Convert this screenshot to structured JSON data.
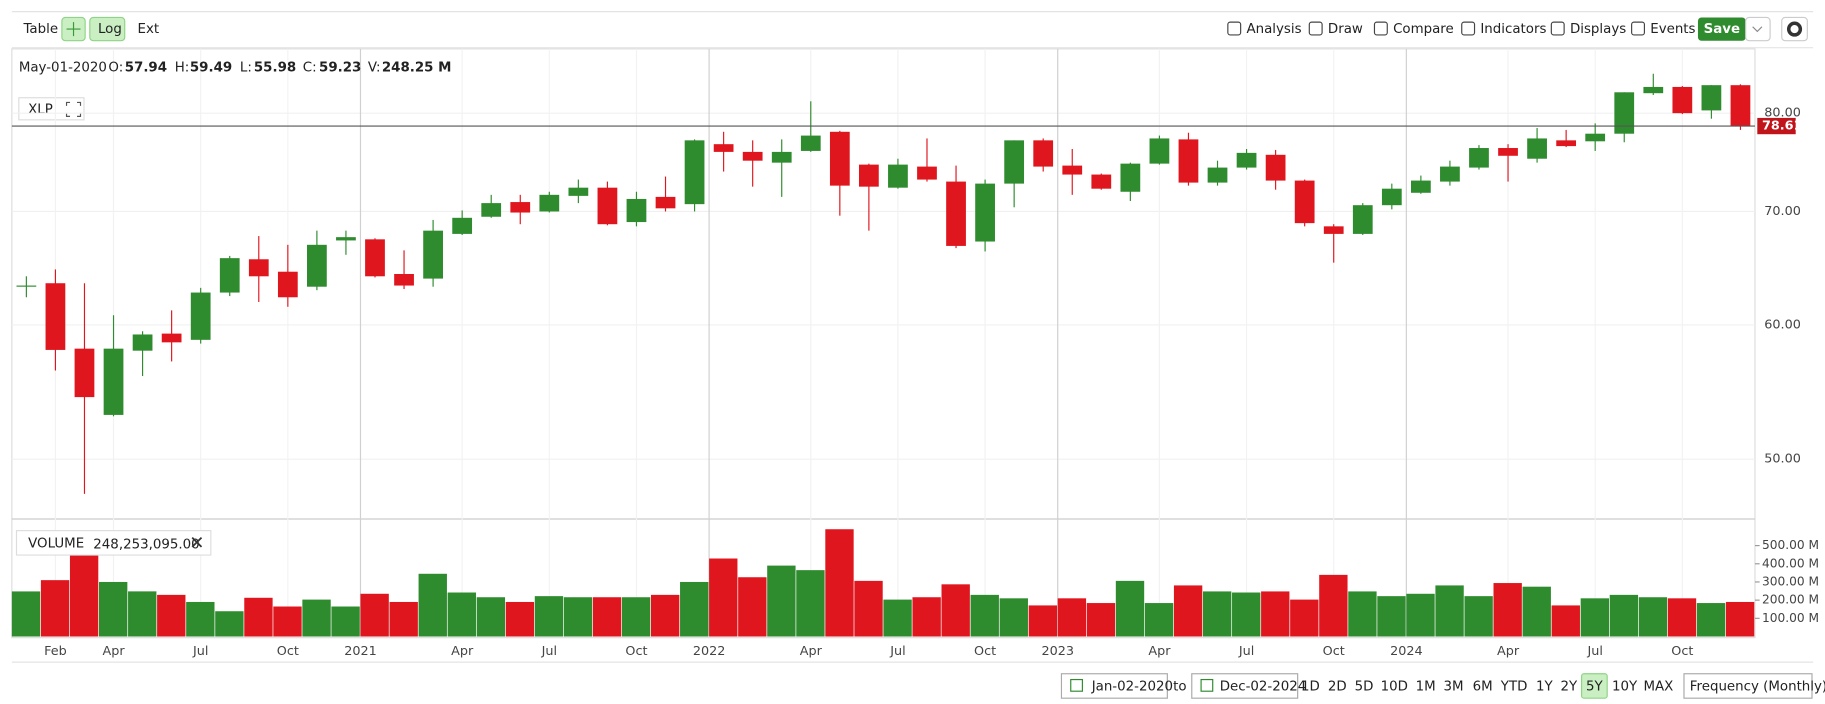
{
  "toolbar": {
    "left": [
      "Table",
      "Log",
      "Ext"
    ],
    "right": [
      "Analysis",
      "Draw",
      "Compare",
      "Indicators",
      "Displays",
      "Events"
    ],
    "save": "Save"
  },
  "status": {
    "date": "May-01-2020",
    "fields": [
      {
        "key": "O:",
        "value": "57.94"
      },
      {
        "key": "H:",
        "value": "59.49"
      },
      {
        "key": "L:",
        "value": "55.98"
      },
      {
        "key": "C:",
        "value": "59.23"
      },
      {
        "key": "V:",
        "value": "248.25 M"
      }
    ]
  },
  "symbol": "XLP",
  "volume_legend": {
    "name": "VOLUME",
    "value": "248,253,095.00"
  },
  "chart_data": {
    "type": "candlestick",
    "log_scale": true,
    "up_color": "#2e8b2e",
    "down_color": "#e0161e",
    "categories": [
      null,
      "Feb",
      null,
      "Apr",
      null,
      null,
      "Jul",
      null,
      null,
      "Oct",
      null,
      null,
      "2021",
      null,
      null,
      "Apr",
      null,
      null,
      "Jul",
      null,
      null,
      "Oct",
      null,
      null,
      "2022",
      null,
      null,
      "Apr",
      null,
      null,
      "Jul",
      null,
      null,
      "Oct",
      null,
      null,
      "2023",
      null,
      null,
      "Apr",
      null,
      null,
      "Jul",
      null,
      null,
      "Oct",
      null,
      null,
      "2024",
      null,
      null,
      "Apr",
      null,
      null,
      "Jul",
      null,
      null,
      "Oct",
      null,
      null
    ],
    "open": [
      63.3,
      63.5,
      58.1,
      53.1,
      57.94,
      59.3,
      58.8,
      62.7,
      65.6,
      64.5,
      63.2,
      67.3,
      67.4,
      64.3,
      63.9,
      67.9,
      69.5,
      70.9,
      70.0,
      71.5,
      72.3,
      69.0,
      71.4,
      70.7,
      76.7,
      75.9,
      74.8,
      76.0,
      78.0,
      74.6,
      72.3,
      74.4,
      72.9,
      67.2,
      72.7,
      77.1,
      74.5,
      73.6,
      71.9,
      74.7,
      77.2,
      72.8,
      74.3,
      75.6,
      73.0,
      68.6,
      67.9,
      70.6,
      71.8,
      72.9,
      74.3,
      76.3,
      75.2,
      77.1,
      77.0,
      77.8,
      82.2,
      82.9,
      80.3,
      83.1
    ],
    "high": [
      64.1,
      64.7,
      63.5,
      60.8,
      59.49,
      61.2,
      63.1,
      65.9,
      67.7,
      66.9,
      68.2,
      68.2,
      67.5,
      66.4,
      69.2,
      70.1,
      71.6,
      71.6,
      71.9,
      73.1,
      72.9,
      71.9,
      73.4,
      77.2,
      78.0,
      77.1,
      77.2,
      81.3,
      78.1,
      74.7,
      75.2,
      77.3,
      74.5,
      73.1,
      77.1,
      77.3,
      76.2,
      73.7,
      74.8,
      77.6,
      77.9,
      75.0,
      76.2,
      76.1,
      73.1,
      68.8,
      70.8,
      72.7,
      73.5,
      75.0,
      76.6,
      76.7,
      78.4,
      78.2,
      78.9,
      82.3,
      84.4,
      83.0,
      83.1,
      83.2
    ],
    "low": [
      62.3,
      56.4,
      47.7,
      53.0,
      55.98,
      57.1,
      58.5,
      62.4,
      61.9,
      61.5,
      62.9,
      66.0,
      64.0,
      63.0,
      63.2,
      67.8,
      69.4,
      68.8,
      69.9,
      70.8,
      68.7,
      68.6,
      70.0,
      70.0,
      73.9,
      72.4,
      71.4,
      75.9,
      69.6,
      68.2,
      72.2,
      72.9,
      66.6,
      66.3,
      70.4,
      73.9,
      71.6,
      72.1,
      71.0,
      74.6,
      72.5,
      72.5,
      74.1,
      72.1,
      68.6,
      65.3,
      67.8,
      70.2,
      71.7,
      72.5,
      74.1,
      72.9,
      74.8,
      76.4,
      76.0,
      76.9,
      82.0,
      79.9,
      79.4,
      78.2
    ],
    "close": [
      63.3,
      58.0,
      54.4,
      58.1,
      59.23,
      58.6,
      62.7,
      65.7,
      64.1,
      62.3,
      66.9,
      67.6,
      64.1,
      63.3,
      68.2,
      69.4,
      70.8,
      69.9,
      71.6,
      72.3,
      68.8,
      71.2,
      70.3,
      77.1,
      75.9,
      75.0,
      75.9,
      77.6,
      72.5,
      72.4,
      74.6,
      73.1,
      66.8,
      72.7,
      77.1,
      74.4,
      73.6,
      72.2,
      74.7,
      77.3,
      72.8,
      74.3,
      75.8,
      73.0,
      68.9,
      67.9,
      70.6,
      72.2,
      73.0,
      74.4,
      76.3,
      75.5,
      77.3,
      76.5,
      77.8,
      82.3,
      82.9,
      80.0,
      83.1,
      78.61
    ],
    "volume": [
      248,
      310,
      455,
      300,
      248.25,
      229,
      190,
      139,
      213,
      165,
      203,
      165,
      235,
      190,
      345,
      242,
      216,
      190,
      222,
      216,
      216,
      216,
      229,
      300,
      429,
      326,
      390,
      365,
      590,
      306,
      203,
      216,
      287,
      229,
      210,
      171,
      210,
      184,
      306,
      184,
      281,
      248,
      242,
      248,
      203,
      339,
      248,
      222,
      235,
      281,
      222,
      294,
      274,
      171,
      210,
      229,
      216,
      210,
      184,
      190
    ],
    "ylim": [
      46.1,
      87.3
    ],
    "yticks": [
      {
        "value": 50,
        "label": "50.00"
      },
      {
        "value": 60,
        "label": "60.00"
      },
      {
        "value": 70,
        "label": "70.00"
      },
      {
        "value": 80,
        "label": "80.00"
      }
    ],
    "y2lim": [
      0,
      640
    ],
    "y2ticks": [
      {
        "value": 100,
        "label": "100.00 M"
      },
      {
        "value": 200,
        "label": "200.00 M"
      },
      {
        "value": 300,
        "label": "300.00 M"
      },
      {
        "value": 400,
        "label": "400.00 M"
      },
      {
        "value": 500,
        "label": "500.00 M"
      }
    ],
    "last_price": 78.61
  },
  "footer": {
    "from": "Jan-02-2020",
    "to_word": "to",
    "to": "Dec-02-2024",
    "ranges": [
      "1D",
      "2D",
      "5D",
      "10D",
      "1M",
      "3M",
      "6M",
      "YTD",
      "1Y",
      "2Y",
      "5Y",
      "10Y",
      "MAX"
    ],
    "frequency": "Frequency (Monthly)"
  }
}
